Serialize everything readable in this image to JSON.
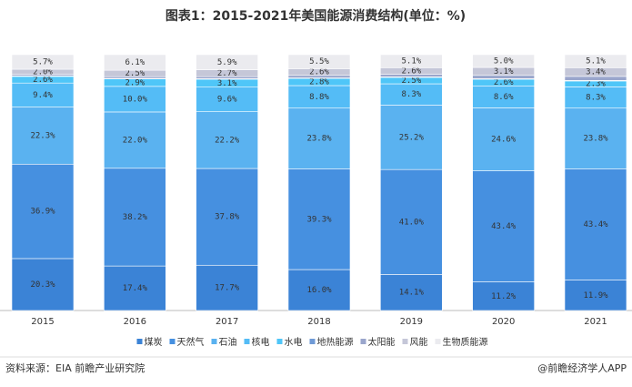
{
  "chart_data": {
    "type": "stacked-bar",
    "title": "图表1：2015-2021年美国能源消费结构(单位：%)",
    "categories": [
      "2015",
      "2016",
      "2017",
      "2018",
      "2019",
      "2020",
      "2021"
    ],
    "ylim": [
      0,
      100
    ],
    "series": [
      {
        "name": "煤炭",
        "color": "#3b83d6",
        "values": [
          20.3,
          17.4,
          17.7,
          16.0,
          14.1,
          11.2,
          11.9
        ],
        "value_labels": [
          "20.3%",
          "17.4%",
          "17.7%",
          "16.0%",
          "14.1%",
          "11.2%",
          "11.9%"
        ]
      },
      {
        "name": "天然气",
        "color": "#4690e0",
        "values": [
          36.9,
          38.2,
          37.8,
          39.3,
          41.0,
          43.4,
          43.4
        ],
        "value_labels": [
          "36.9%",
          "38.2%",
          "37.8%",
          "39.3%",
          "41.0%",
          "43.4%",
          "43.4%"
        ]
      },
      {
        "name": "石油",
        "color": "#5ab2f0",
        "values": [
          22.3,
          22.0,
          22.2,
          23.8,
          25.2,
          24.6,
          23.8
        ],
        "value_labels": [
          "22.3%",
          "22.0%",
          "22.2%",
          "23.8%",
          "25.2%",
          "24.6%",
          "23.8%"
        ]
      },
      {
        "name": "核电",
        "color": "#54bcf6",
        "values": [
          9.4,
          10.0,
          9.6,
          8.8,
          8.3,
          8.6,
          8.3
        ],
        "value_labels": [
          "9.4%",
          "10.0%",
          "9.6%",
          "8.8%",
          "8.3%",
          "8.6%",
          "8.3%"
        ]
      },
      {
        "name": "水电",
        "color": "#4fc6f8",
        "values": [
          2.6,
          2.9,
          3.1,
          2.8,
          2.5,
          2.6,
          2.3
        ],
        "value_labels": [
          "2.6%",
          "2.9%",
          "3.1%",
          "2.8%",
          "2.5%",
          "2.6%",
          "2.3%"
        ]
      },
      {
        "name": "地热能源",
        "color": "#6f9ad6",
        "values": [
          0.2,
          0.2,
          0.2,
          0.2,
          0.2,
          0.2,
          0.2
        ]
      },
      {
        "name": "太阳能",
        "color": "#9aa6cc",
        "values": [
          0.6,
          0.7,
          0.8,
          1.0,
          1.0,
          1.3,
          1.6
        ]
      },
      {
        "name": "风能",
        "color": "#c5c7d8",
        "values": [
          2.0,
          2.5,
          2.7,
          2.6,
          2.6,
          3.1,
          3.4
        ],
        "value_labels": [
          "2.0%",
          "2.5%",
          "2.7%",
          "2.6%",
          "2.6%",
          "3.1%",
          "3.4%"
        ]
      },
      {
        "name": "生物质能源",
        "color": "#ebebef",
        "values": [
          5.7,
          6.1,
          5.9,
          5.5,
          5.1,
          5.0,
          5.1
        ],
        "value_labels": [
          "5.7%",
          "6.1%",
          "5.9%",
          "5.5%",
          "5.1%",
          "5.0%",
          "5.1%"
        ]
      }
    ],
    "source": "资料来源：EIA 前瞻产业研究院",
    "credit": "@前瞻经济学人APP"
  }
}
